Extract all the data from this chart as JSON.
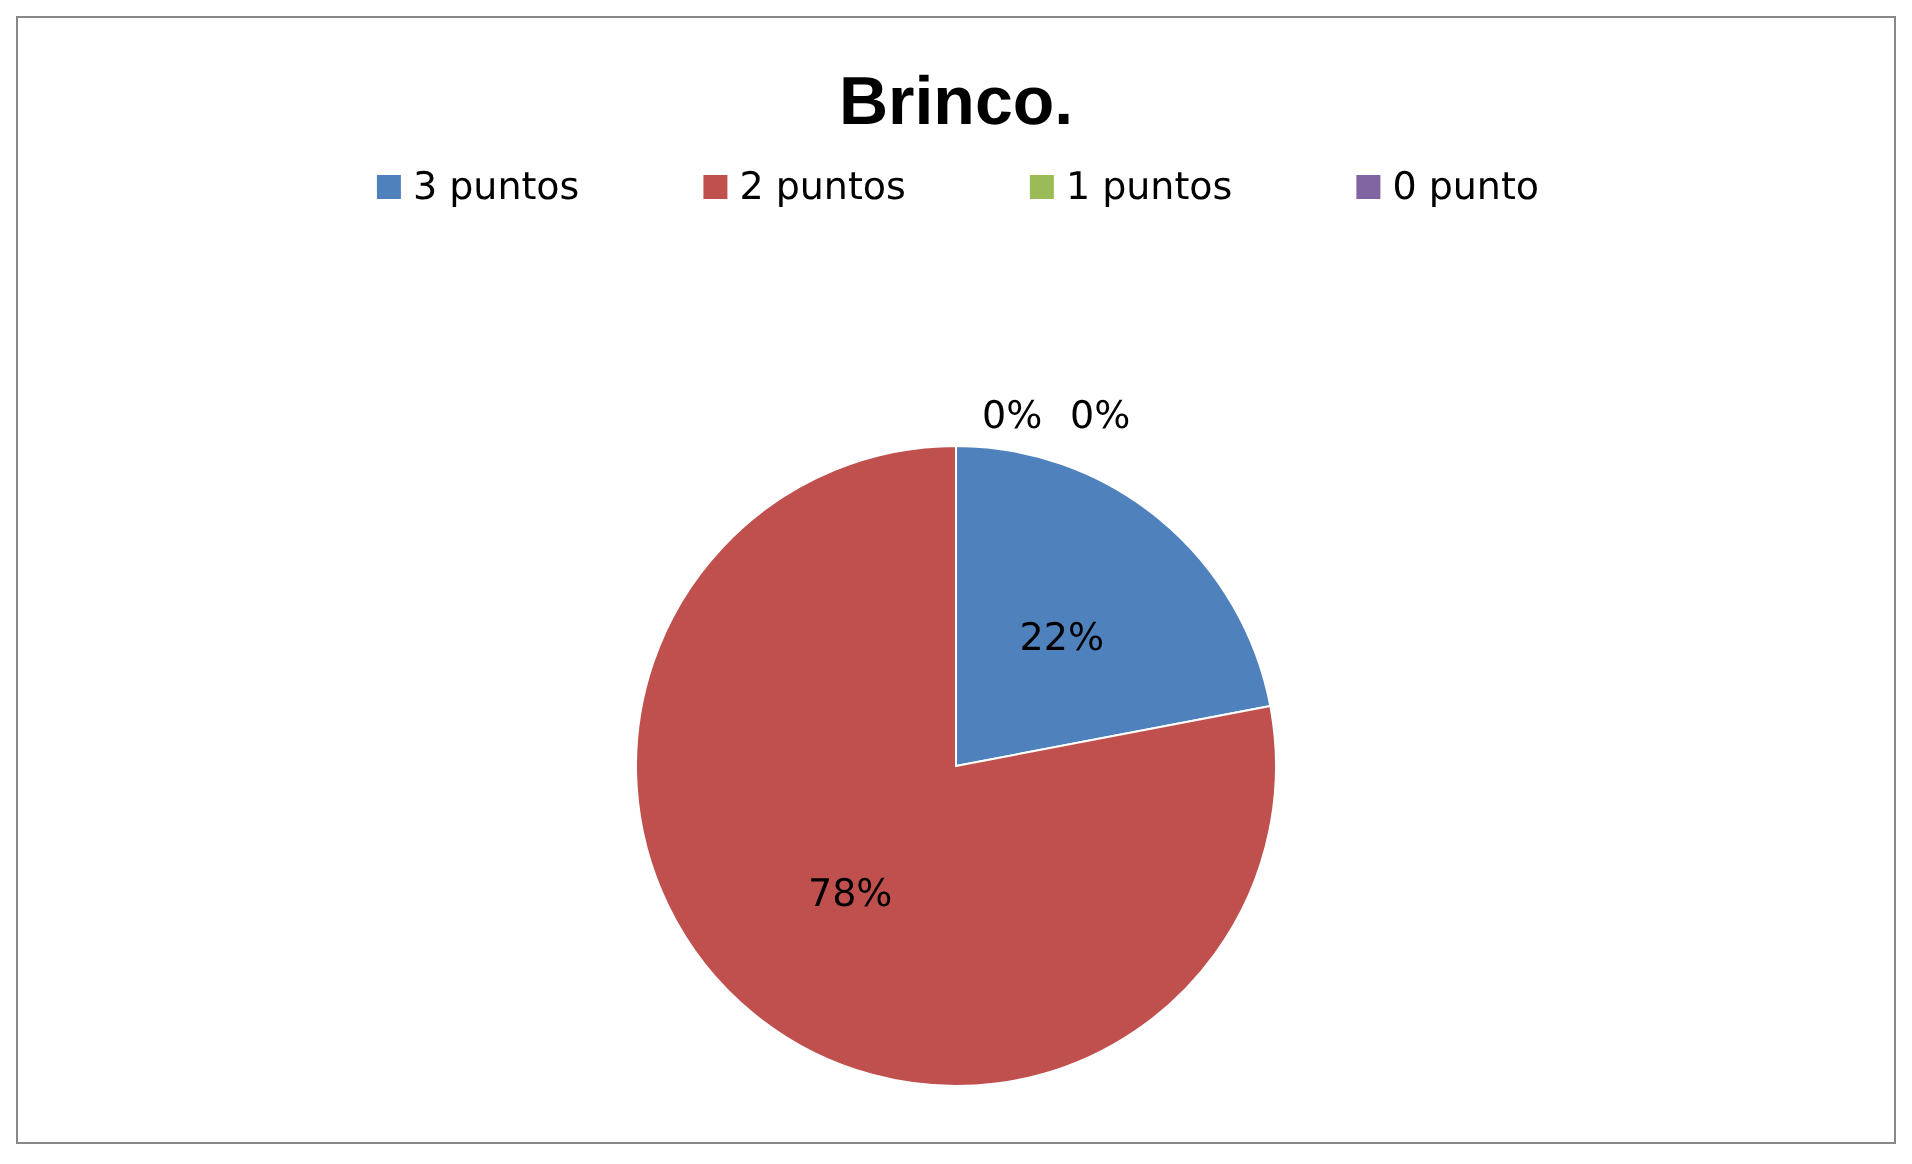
{
  "chart_data": {
    "type": "pie",
    "title": "Brinco.",
    "categories": [
      "3 puntos",
      "2 puntos",
      "1 puntos",
      "0 punto"
    ],
    "values": [
      22,
      78,
      0,
      0
    ],
    "value_labels": [
      "22%",
      "78%",
      "0%",
      "0%"
    ],
    "colors": [
      "#4f81bd",
      "#c0504d",
      "#9bbb59",
      "#8064a2"
    ],
    "legend": "top"
  }
}
